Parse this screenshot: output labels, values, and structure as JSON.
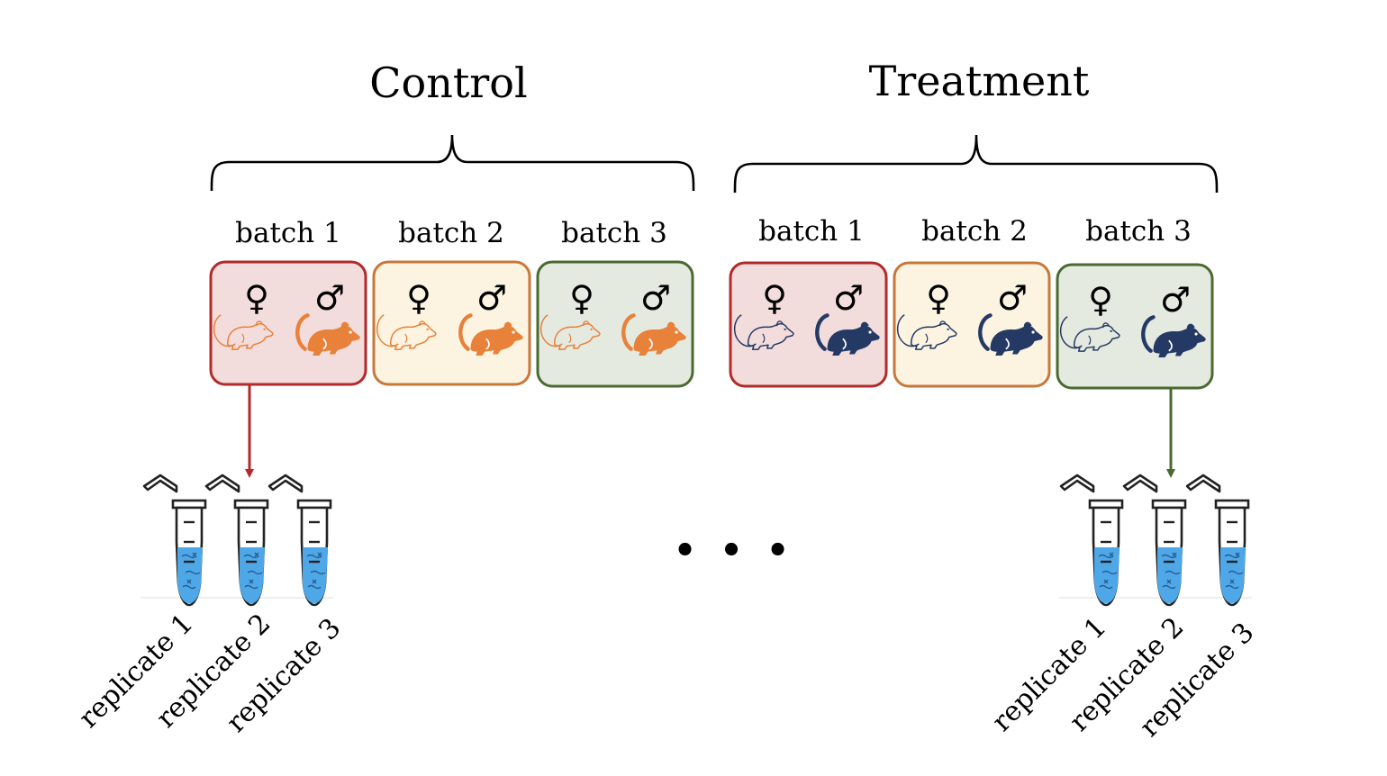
{
  "colors": {
    "batch1_border": "#b22a2a",
    "batch1_fill": "#f3dcdc",
    "batch2_border": "#c8773a",
    "batch2_fill": "#fcf4e1",
    "batch3_border": "#4a6a31",
    "batch3_fill": "#e4eadf",
    "control_mouse": "#e8813a",
    "treatment_mouse": "#243a64",
    "tube_liquid": "#4ea8e8",
    "arrow_control": "#b22a2a",
    "arrow_treatment": "#4a6a31"
  },
  "symbols": {
    "female": "♀",
    "male": "♂"
  },
  "ellipsis": "• • •",
  "groups": [
    {
      "title": "Control",
      "mouse_color": "#e8813a",
      "batches": [
        {
          "label": "batch 1",
          "border": "#b22a2a",
          "fill": "#f3dcdc"
        },
        {
          "label": "batch 2",
          "border": "#c8773a",
          "fill": "#fcf4e1"
        },
        {
          "label": "batch 3",
          "border": "#4a6a31",
          "fill": "#e4eadf"
        }
      ],
      "replicates": [
        "replicate 1",
        "replicate 2",
        "replicate 3"
      ]
    },
    {
      "title": "Treatment",
      "mouse_color": "#243a64",
      "batches": [
        {
          "label": "batch 1",
          "border": "#b22a2a",
          "fill": "#f3dcdc"
        },
        {
          "label": "batch 2",
          "border": "#c8773a",
          "fill": "#fcf4e1"
        },
        {
          "label": "batch 3",
          "border": "#4a6a31",
          "fill": "#e4eadf"
        }
      ],
      "replicates": [
        "replicate 1",
        "replicate 2",
        "replicate 3"
      ]
    }
  ]
}
